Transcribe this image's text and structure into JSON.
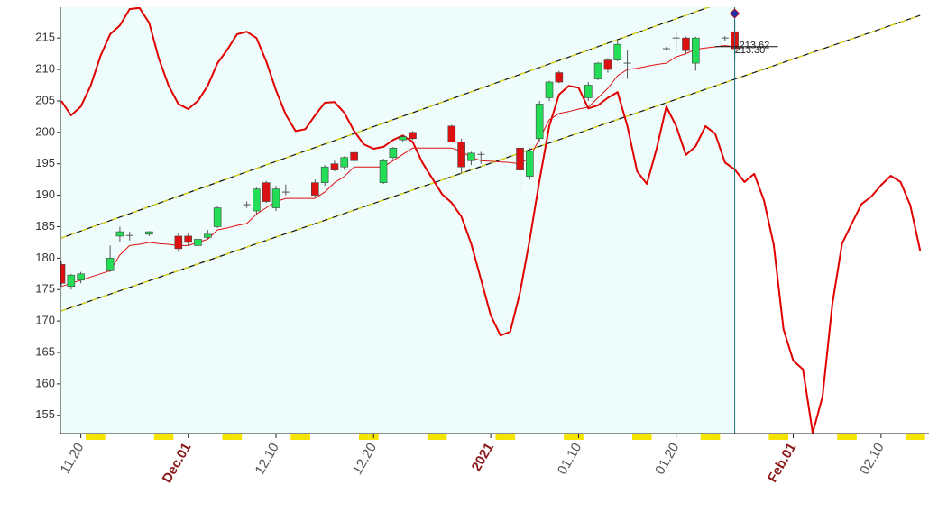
{
  "chart_data": {
    "type": "candlestick",
    "categories": [
      null,
      null,
      "11.20",
      null,
      null,
      null,
      null,
      null,
      null,
      null,
      null,
      null,
      null,
      "Dec.01",
      null,
      null,
      null,
      null,
      null,
      null,
      null,
      null,
      "12.10",
      null,
      null,
      null,
      null,
      null,
      null,
      null,
      null,
      null,
      "12.20",
      null,
      null,
      null,
      null,
      null,
      null,
      null,
      null,
      null,
      null,
      null,
      "2021",
      null,
      null,
      null,
      null,
      null,
      null,
      null,
      null,
      "01.10",
      null,
      null,
      null,
      null,
      null,
      null,
      null,
      null,
      null,
      "01.20",
      null,
      null,
      null,
      null,
      null,
      null,
      null,
      null,
      null,
      null,
      null,
      "Feb.01",
      null,
      null,
      null,
      null,
      null,
      null,
      null,
      null,
      "02.10",
      null,
      null,
      null,
      null
    ],
    "ohlc": [
      [
        179,
        179.5,
        175.5,
        176
      ],
      [
        175.5,
        177.5,
        175,
        177.3
      ],
      [
        176.5,
        177.8,
        176,
        177.5
      ],
      null,
      null,
      [
        178,
        182,
        177.8,
        180
      ],
      [
        183.5,
        185,
        182.5,
        184.2
      ],
      [
        183.6,
        184.2,
        182.8,
        183.6
      ],
      null,
      [
        183.8,
        184.3,
        183.5,
        184.2
      ],
      null,
      null,
      [
        183.5,
        184,
        181,
        181.5
      ],
      [
        183.5,
        184,
        182,
        182.5
      ],
      [
        182,
        183.2,
        181,
        183
      ],
      [
        183.3,
        184.5,
        183,
        183.8
      ],
      [
        185,
        188.2,
        184.8,
        188
      ],
      null,
      null,
      [
        188.5,
        189,
        188,
        188.5
      ],
      [
        187.5,
        191.2,
        187,
        191
      ],
      [
        192,
        192.3,
        188.8,
        189
      ],
      [
        188,
        191.5,
        187.5,
        191
      ],
      [
        190.5,
        191.7,
        190,
        190.5
      ],
      null,
      null,
      [
        192,
        192.5,
        189.8,
        190
      ],
      [
        192,
        194.8,
        191.5,
        194.5
      ],
      [
        195,
        195.5,
        193.8,
        194
      ],
      [
        194.5,
        196.2,
        194,
        196
      ],
      [
        196.8,
        197.5,
        195,
        195.5
      ],
      null,
      null,
      [
        192,
        195.8,
        191.8,
        195.5
      ],
      [
        196,
        197.7,
        195.7,
        197.5
      ],
      [
        198.8,
        199.6,
        198.5,
        199.3
      ],
      [
        200,
        200.2,
        198.8,
        199
      ],
      null,
      null,
      null,
      [
        201,
        201.2,
        198.5,
        198.5
      ],
      [
        198.5,
        199,
        193.5,
        194.5
      ],
      [
        195.5,
        196.9,
        194.8,
        196.7
      ],
      [
        196.5,
        196.9,
        195,
        196.5
      ],
      null,
      null,
      null,
      [
        197.5,
        197.8,
        191,
        194
      ],
      [
        193,
        197.5,
        192.5,
        197
      ],
      [
        199,
        205,
        198.5,
        204.5
      ],
      [
        205.5,
        208.2,
        205,
        208
      ],
      [
        209.5,
        209.8,
        207.8,
        208
      ],
      null,
      null,
      [
        205.5,
        208,
        205,
        207.5
      ],
      [
        208.5,
        211.2,
        208.3,
        211
      ],
      [
        211.5,
        211.8,
        209.5,
        210
      ],
      [
        211.5,
        214.5,
        211.3,
        214
      ],
      [
        211,
        213,
        208.5,
        211
      ],
      null,
      null,
      null,
      [
        213.3,
        213.6,
        213,
        213.3
      ],
      [
        215,
        216,
        212.8,
        215
      ],
      [
        215,
        215.2,
        212.5,
        213
      ],
      [
        211,
        215.2,
        209.8,
        215
      ],
      null,
      null,
      [
        215,
        215.3,
        214.6,
        215
      ],
      [
        216,
        217.8,
        211.5,
        213.3
      ],
      null,
      null,
      null,
      null,
      null,
      null,
      null,
      null,
      null,
      null,
      null,
      null,
      null,
      null,
      null,
      null,
      null,
      null,
      null
    ],
    "up_color": "#22dd55",
    "down_color": "#dd1111",
    "moving_average": {
      "color": "#dd1111",
      "values": [
        175.5,
        176,
        176.5,
        177,
        177.5,
        178,
        180.5,
        182,
        182.2,
        182.5,
        182.3,
        182.2,
        182,
        182,
        182.5,
        183,
        184.5,
        184.8,
        185.2,
        185.5,
        187,
        188,
        189,
        189.5,
        189.5,
        189.5,
        189.5,
        190.5,
        192,
        193,
        194.5,
        194.5,
        194.5,
        194.5,
        195.5,
        196.5,
        197.5,
        197.5,
        197.5,
        197.5,
        197.5,
        197,
        196,
        195.5,
        195.4,
        195.3,
        195.2,
        195,
        196,
        199,
        202,
        203,
        203.3,
        203.7,
        204,
        205.5,
        207,
        209,
        210,
        210.2,
        210.5,
        210.8,
        211,
        212,
        212.5,
        213.2,
        213.4,
        213.6,
        213.8,
        213.6,
        null,
        null,
        null,
        null,
        null,
        null,
        null,
        null,
        null,
        null,
        null,
        null,
        null,
        null,
        null,
        null,
        null,
        null,
        null
      ]
    },
    "oscillator": {
      "color": "#e00000",
      "values": [
        205,
        202.7,
        204.1,
        207.4,
        212.1,
        215.6,
        217,
        219.6,
        219.8,
        217.4,
        211.7,
        207.4,
        204.5,
        203.7,
        205,
        207.4,
        211,
        213.1,
        215.6,
        216,
        215,
        211.3,
        206.7,
        202.8,
        200.2,
        200.5,
        202.7,
        204.7,
        204.8,
        203.1,
        200.2,
        198.1,
        197.4,
        197.7,
        198.8,
        199.5,
        198.5,
        195.2,
        192.7,
        190.2,
        188.8,
        186.6,
        182.3,
        176.6,
        170.9,
        167.7,
        168.3,
        174.5,
        183,
        192.4,
        201,
        206,
        207.4,
        207.1,
        203.8,
        204.3,
        205.5,
        206.4,
        201,
        193.8,
        191.8,
        197.4,
        204.1,
        201,
        196.4,
        197.8,
        201,
        199.8,
        195.2,
        194.1,
        192.1,
        193.4,
        189.2,
        182.1,
        168.7,
        163.7,
        162.3,
        152.2,
        158,
        172.6,
        182.3,
        185.5,
        188.6,
        189.8,
        191.6,
        193.1,
        192.1,
        188.4,
        181.2
      ]
    },
    "channel": [
      {
        "x": [
          0,
          88
        ],
        "y": [
          183.2,
          231.9
        ]
      },
      {
        "x": [
          0,
          88
        ],
        "y": [
          171.6,
          218.6
        ]
      }
    ],
    "cursor": {
      "index": 69,
      "marker": 218.9,
      "color": "#1b6f80"
    },
    "annotations": [
      {
        "text": "213.62",
        "value": 213.62
      },
      {
        "text": "213.30",
        "value": 213.3
      }
    ],
    "ylim": [
      152.1,
      219.9
    ],
    "yticks": [
      155,
      160,
      165,
      170,
      175,
      180,
      185,
      190,
      195,
      200,
      205,
      210,
      215
    ]
  }
}
